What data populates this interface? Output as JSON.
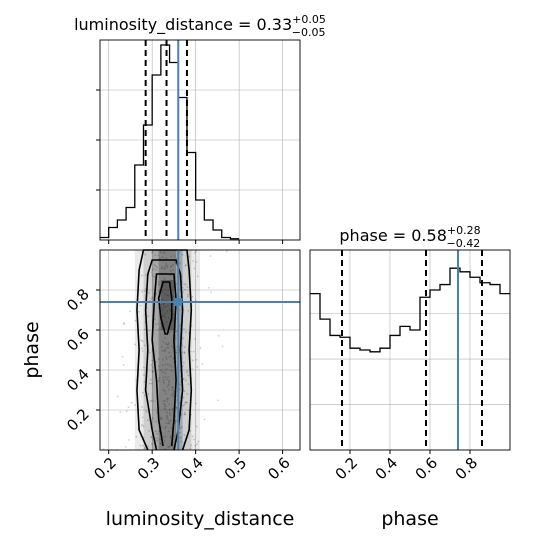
{
  "chart_data": [
    {
      "type": "histogram",
      "panel": "luminosity_distance marginal",
      "title": {
        "label": "luminosity_distance = 0.33",
        "sup": "+0.05",
        "sub": "−0.05"
      },
      "xlim": [
        0.18,
        0.64
      ],
      "bins": [
        [
          0.18,
          0.2,
          0.01
        ],
        [
          0.2,
          0.22,
          0.05
        ],
        [
          0.22,
          0.24,
          0.08
        ],
        [
          0.24,
          0.26,
          0.13
        ],
        [
          0.26,
          0.28,
          0.3
        ],
        [
          0.28,
          0.3,
          0.46
        ],
        [
          0.3,
          0.32,
          0.66
        ],
        [
          0.32,
          0.34,
          0.78
        ],
        [
          0.34,
          0.36,
          0.71
        ],
        [
          0.36,
          0.38,
          0.57
        ],
        [
          0.38,
          0.4,
          0.35
        ],
        [
          0.4,
          0.42,
          0.16
        ],
        [
          0.42,
          0.44,
          0.08
        ],
        [
          0.44,
          0.46,
          0.04
        ],
        [
          0.46,
          0.48,
          0.01
        ],
        [
          0.48,
          0.5,
          0.005
        ]
      ],
      "quantiles": [
        0.285,
        0.333,
        0.38
      ],
      "truth": 0.36,
      "grid": true
    },
    {
      "type": "histogram",
      "panel": "phase marginal",
      "title": {
        "label": "phase = 0.58",
        "sup": "+0.28",
        "sub": "−0.42"
      },
      "xlim": [
        0,
        1
      ],
      "xticks": [
        "0.2",
        "0.4",
        "0.6",
        "0.8"
      ],
      "xlabel": "phase",
      "bins": [
        [
          0.0,
          0.05,
          0.86
        ],
        [
          0.05,
          0.1,
          0.72
        ],
        [
          0.1,
          0.15,
          0.63
        ],
        [
          0.15,
          0.2,
          0.62
        ],
        [
          0.2,
          0.25,
          0.56
        ],
        [
          0.25,
          0.3,
          0.55
        ],
        [
          0.3,
          0.35,
          0.54
        ],
        [
          0.35,
          0.4,
          0.56
        ],
        [
          0.4,
          0.45,
          0.63
        ],
        [
          0.45,
          0.5,
          0.68
        ],
        [
          0.5,
          0.55,
          0.66
        ],
        [
          0.55,
          0.6,
          0.84
        ],
        [
          0.6,
          0.65,
          0.88
        ],
        [
          0.65,
          0.7,
          0.91
        ],
        [
          0.7,
          0.75,
          1.0
        ],
        [
          0.75,
          0.8,
          0.98
        ],
        [
          0.8,
          0.85,
          0.95
        ],
        [
          0.85,
          0.9,
          0.92
        ],
        [
          0.9,
          0.95,
          0.91
        ],
        [
          0.95,
          1.0,
          0.86
        ]
      ],
      "quantiles": [
        0.16,
        0.58,
        0.86
      ],
      "truth": 0.74,
      "grid": true
    },
    {
      "type": "scatter",
      "panel": "2D joint density with contours",
      "xlim": [
        0.18,
        0.64
      ],
      "ylim": [
        0,
        1
      ],
      "xticks": [
        "0.2",
        "0.3",
        "0.4",
        "0.5",
        "0.6"
      ],
      "yticks": [
        "0.2",
        "0.4",
        "0.6",
        "0.8"
      ],
      "xlabel": "luminosity_distance",
      "ylabel": "phase",
      "x_mean": 0.335,
      "x_std": 0.035,
      "contours": [
        {
          "left": [
            [
              0.29,
              0
            ],
            [
              0.27,
              0.1
            ],
            [
              0.265,
              0.3
            ],
            [
              0.27,
              0.5
            ],
            [
              0.265,
              0.7
            ],
            [
              0.27,
              0.9
            ],
            [
              0.28,
              1
            ]
          ],
          "right": [
            [
              0.37,
              0
            ],
            [
              0.385,
              0.1
            ],
            [
              0.39,
              0.3
            ],
            [
              0.385,
              0.5
            ],
            [
              0.39,
              0.7
            ],
            [
              0.385,
              0.9
            ],
            [
              0.38,
              1
            ]
          ]
        },
        {
          "left": [
            [
              0.31,
              0
            ],
            [
              0.3,
              0.1
            ],
            [
              0.285,
              0.3
            ],
            [
              0.29,
              0.5
            ],
            [
              0.285,
              0.7
            ],
            [
              0.29,
              0.88
            ],
            [
              0.3,
              0.95
            ]
          ],
          "right": [
            [
              0.35,
              0
            ],
            [
              0.36,
              0.1
            ],
            [
              0.37,
              0.3
            ],
            [
              0.365,
              0.5
            ],
            [
              0.37,
              0.7
            ],
            [
              0.365,
              0.88
            ],
            [
              0.355,
              0.95
            ]
          ]
        },
        {
          "left": [
            [
              0.325,
              0.02
            ],
            [
              0.315,
              0.15
            ],
            [
              0.31,
              0.35
            ],
            [
              0.3,
              0.55
            ],
            [
              0.305,
              0.75
            ],
            [
              0.31,
              0.88
            ]
          ],
          "right": [
            [
              0.345,
              0.02
            ],
            [
              0.35,
              0.15
            ],
            [
              0.355,
              0.35
            ],
            [
              0.35,
              0.55
            ],
            [
              0.355,
              0.75
            ],
            [
              0.35,
              0.88
            ]
          ]
        },
        {
          "left": [
            [
              0.33,
              0.58
            ],
            [
              0.32,
              0.66
            ],
            [
              0.315,
              0.76
            ],
            [
              0.325,
              0.84
            ]
          ],
          "right": [
            [
              0.335,
              0.58
            ],
            [
              0.345,
              0.66
            ],
            [
              0.345,
              0.76
            ],
            [
              0.34,
              0.84
            ]
          ]
        }
      ],
      "truth": [
        0.36,
        0.74
      ],
      "grid": true
    }
  ],
  "colors": {
    "truth": "#4682b4",
    "hist_line": "#000000",
    "grid": "#b0b0b0",
    "points": "#000000"
  }
}
